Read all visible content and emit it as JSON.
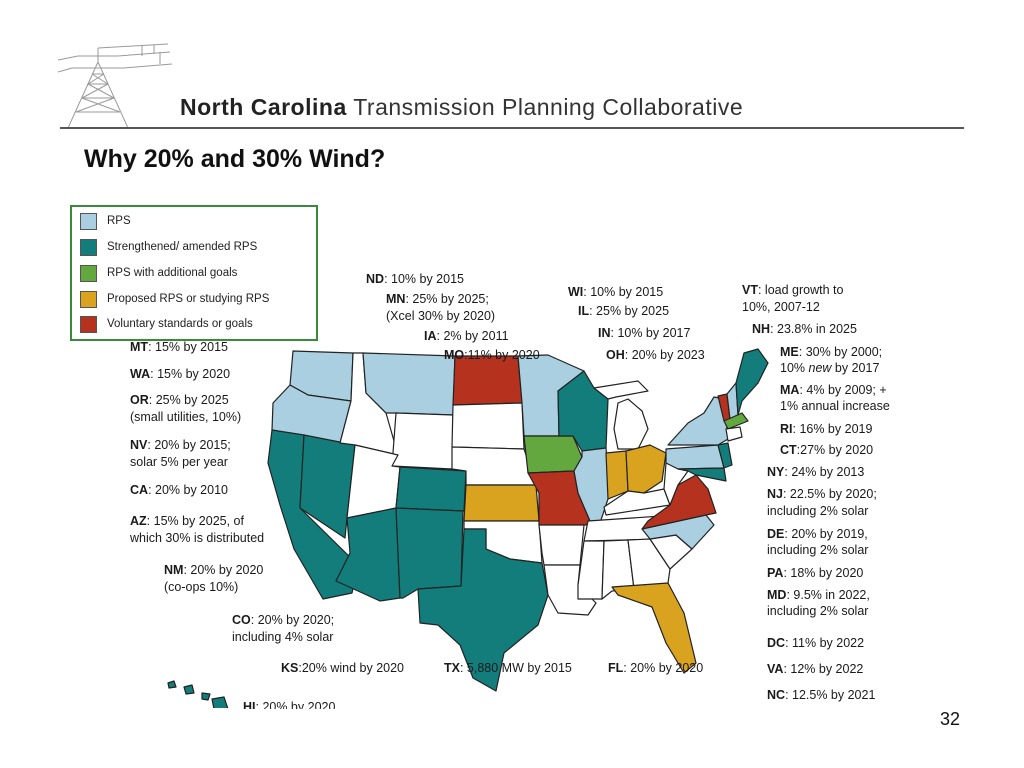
{
  "header": {
    "org_bold": "North Carolina",
    "org_rest": " Transmission Planning Collaborative"
  },
  "slide": {
    "title": "Why 20% and 30% Wind?",
    "page_number": "32"
  },
  "colors": {
    "rps": "#a9cfe0",
    "strengthened": "#127d7b",
    "additional_goals": "#63a83f",
    "proposed": "#d9a21f",
    "voluntary": "#b5321f",
    "none": "#ffffff"
  },
  "legend": [
    {
      "label": "RPS",
      "color": "#a9cfe0"
    },
    {
      "label": "Strengthened/ amended RPS",
      "color": "#127d7b"
    },
    {
      "label": "RPS with additional goals",
      "color": "#63a83f"
    },
    {
      "label": "Proposed RPS or studying RPS",
      "color": "#d9a21f"
    },
    {
      "label": "Voluntary standards or goals",
      "color": "#b5321f"
    }
  ],
  "annotations": {
    "nd": {
      "state": "ND",
      "text": ": 10%  by 2015"
    },
    "mn": {
      "state": "MN",
      "text": ": 25%  by 2025;"
    },
    "mn2": "(Xcel 30% by 2020)",
    "ia": {
      "state": "IA",
      "text": ": 2% by 2011"
    },
    "mo": {
      "state": "MO",
      "text": ":11% by 2020"
    },
    "wi": {
      "state": "WI",
      "text": ": 10% by 2015"
    },
    "il": {
      "state": "IL",
      "text": ": 25% by 2025"
    },
    "in": {
      "state": "IN",
      "text": ": 10% by 2017"
    },
    "oh": {
      "state": "OH",
      "text": ": 20% by 2023"
    },
    "vt": {
      "state": "VT",
      "text": ": load growth to"
    },
    "vt2": "10%, 2007-12",
    "nh": {
      "state": "NH",
      "text": ": 23.8% in 2025"
    },
    "me": {
      "state": "ME",
      "text": ": 30% by 2000;"
    },
    "me2_a": "10% ",
    "me2_b": "new",
    "me2_c": " by 2017",
    "ma": {
      "state": "MA",
      "text": ": 4% by 2009; +"
    },
    "ma2": "1% annual increase",
    "ri": {
      "state": "RI",
      "text": ": 16% by 2019"
    },
    "ct": {
      "state": "CT",
      "text": ":27% by 2020"
    },
    "ny": {
      "state": "NY",
      "text": ": 24% by 2013"
    },
    "nj": {
      "state": "NJ",
      "text": ": 22.5% by 2020;"
    },
    "nj2": "including 2% solar",
    "de": {
      "state": "DE",
      "text": ": 20% by 2019,"
    },
    "de2": "including 2% solar",
    "pa": {
      "state": "PA",
      "text": ": 18% by 2020"
    },
    "md": {
      "state": "MD",
      "text": ": 9.5% in 2022,"
    },
    "md2": "including 2% solar",
    "dc": {
      "state": "DC",
      "text": ": 11% by 2022"
    },
    "va": {
      "state": "VA",
      "text": ": 12% by 2022"
    },
    "nc": {
      "state": "NC",
      "text": ": 12.5% by 2021"
    },
    "mt": {
      "state": "MT",
      "text": ": 15%  by 2015"
    },
    "wa": {
      "state": "WA",
      "text": ": 15% by 2020"
    },
    "or": {
      "state": "OR",
      "text": ": 25% by 2025"
    },
    "or2": "(small utilities, 10%)",
    "nv": {
      "state": "NV",
      "text": ": 20% by 2015;"
    },
    "nv2": "solar 5% per year",
    "ca": {
      "state": "CA",
      "text": ": 20% by 2010"
    },
    "az": {
      "state": "AZ",
      "text": ": 15% by 2025, of"
    },
    "az2": "which 30% is distributed",
    "nm": {
      "state": "NM",
      "text": ": 20% by 2020"
    },
    "nm2": "(co-ops 10%)",
    "co": {
      "state": "CO",
      "text": ": 20% by 2020;"
    },
    "co2": "including 4% solar",
    "ks": {
      "state": "KS",
      "text": ":20% wind by 2020"
    },
    "tx": {
      "state": "TX",
      "text": ": 5,880 MW by 2015"
    },
    "fl": {
      "state": "FL",
      "text": ": 20% by 2020"
    },
    "hi": {
      "state": "HI",
      "text": ": 20% by 2020"
    }
  },
  "states": {
    "WA": "rps",
    "OR": "rps",
    "CA": "strengthened",
    "NV": "strengthened",
    "ID": "none",
    "MT": "rps",
    "WY": "none",
    "UT": "none",
    "CO": "strengthened",
    "AZ": "strengthened",
    "NM": "strengthened",
    "ND": "voluntary",
    "SD": "none",
    "NE": "none",
    "KS": "proposed",
    "OK": "none",
    "TX": "strengthened",
    "MN": "rps",
    "IA": "additional_goals",
    "MO": "voluntary",
    "AR": "none",
    "LA": "none",
    "WI": "strengthened",
    "IL": "rps",
    "MI": "none",
    "IN": "proposed",
    "OH": "proposed",
    "KY": "none",
    "TN": "none",
    "MS": "none",
    "AL": "none",
    "GA": "none",
    "FL": "proposed",
    "SC": "none",
    "NC": "rps",
    "VA": "voluntary",
    "WV": "none",
    "PA": "rps",
    "NY": "rps",
    "VT": "voluntary",
    "NH": "rps",
    "ME": "strengthened",
    "MA": "additional_goals",
    "NJ": "strengthened",
    "MD": "strengthened",
    "HI": "strengthened"
  }
}
